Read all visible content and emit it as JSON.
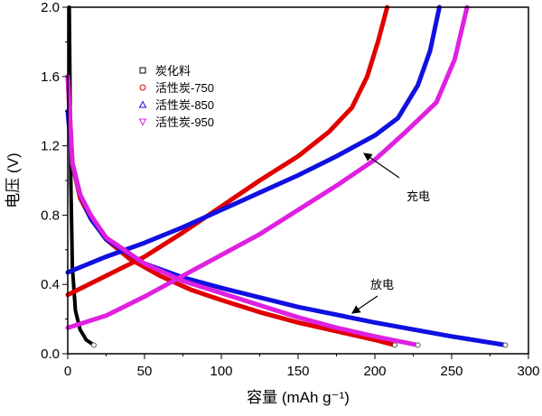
{
  "chart_data": {
    "type": "line",
    "xlabel": "容量 (mAh g⁻¹)",
    "ylabel": "电压 (V)",
    "xlim": [
      0,
      300
    ],
    "ylim": [
      0,
      2.0
    ],
    "xticks": [
      "0",
      "50",
      "100",
      "150",
      "200",
      "250",
      "300"
    ],
    "yticks": [
      "0.0",
      "0.4",
      "0.8",
      "1.2",
      "1.6",
      "2.0"
    ],
    "grid": false,
    "legend_position": "top-left",
    "annotations": [
      {
        "text": "充电"
      },
      {
        "text": "放电"
      }
    ],
    "series": [
      {
        "name": "炭化料",
        "color": "#000000",
        "marker": "square",
        "curves": [
          [
            [
              1,
              2.0
            ],
            [
              1.5,
              1.5
            ],
            [
              2,
              1.0
            ],
            [
              3,
              0.5
            ],
            [
              5,
              0.25
            ],
            [
              8,
              0.14
            ],
            [
              12,
              0.08
            ],
            [
              17,
              0.05
            ]
          ]
        ]
      },
      {
        "name": "活性炭-750",
        "color": "#e00000",
        "marker": "circle",
        "curves": [
          [
            [
              0,
              1.6
            ],
            [
              3,
              1.1
            ],
            [
              8,
              0.9
            ],
            [
              15,
              0.78
            ],
            [
              25,
              0.66
            ],
            [
              40,
              0.55
            ],
            [
              60,
              0.45
            ],
            [
              80,
              0.37
            ],
            [
              100,
              0.31
            ],
            [
              125,
              0.24
            ],
            [
              150,
              0.18
            ],
            [
              175,
              0.13
            ],
            [
              200,
              0.08
            ],
            [
              213,
              0.05
            ]
          ],
          [
            [
              0,
              0.34
            ],
            [
              25,
              0.45
            ],
            [
              50,
              0.56
            ],
            [
              75,
              0.7
            ],
            [
              100,
              0.85
            ],
            [
              125,
              1.0
            ],
            [
              150,
              1.14
            ],
            [
              170,
              1.28
            ],
            [
              185,
              1.42
            ],
            [
              195,
              1.6
            ],
            [
              202,
              1.8
            ],
            [
              208,
              2.0
            ]
          ]
        ]
      },
      {
        "name": "活性炭-850",
        "color": "#1010e0",
        "marker": "triangle-up",
        "curves": [
          [
            [
              0,
              1.4
            ],
            [
              3,
              1.1
            ],
            [
              8,
              0.92
            ],
            [
              15,
              0.78
            ],
            [
              25,
              0.66
            ],
            [
              50,
              0.52
            ],
            [
              75,
              0.44
            ],
            [
              100,
              0.38
            ],
            [
              150,
              0.27
            ],
            [
              200,
              0.18
            ],
            [
              250,
              0.1
            ],
            [
              285,
              0.05
            ]
          ],
          [
            [
              0,
              0.47
            ],
            [
              25,
              0.56
            ],
            [
              50,
              0.64
            ],
            [
              75,
              0.73
            ],
            [
              100,
              0.83
            ],
            [
              125,
              0.93
            ],
            [
              150,
              1.03
            ],
            [
              175,
              1.14
            ],
            [
              200,
              1.26
            ],
            [
              215,
              1.36
            ],
            [
              228,
              1.55
            ],
            [
              236,
              1.75
            ],
            [
              242,
              2.0
            ]
          ]
        ]
      },
      {
        "name": "活性炭-950",
        "color": "#e020e0",
        "marker": "triangle-down",
        "curves": [
          [
            [
              0,
              1.6
            ],
            [
              3,
              1.1
            ],
            [
              8,
              0.92
            ],
            [
              15,
              0.8
            ],
            [
              25,
              0.67
            ],
            [
              50,
              0.52
            ],
            [
              75,
              0.42
            ],
            [
              100,
              0.35
            ],
            [
              125,
              0.28
            ],
            [
              150,
              0.21
            ],
            [
              175,
              0.15
            ],
            [
              200,
              0.1
            ],
            [
              228,
              0.05
            ]
          ],
          [
            [
              0,
              0.15
            ],
            [
              25,
              0.22
            ],
            [
              50,
              0.33
            ],
            [
              75,
              0.45
            ],
            [
              100,
              0.57
            ],
            [
              125,
              0.69
            ],
            [
              150,
              0.83
            ],
            [
              175,
              0.97
            ],
            [
              200,
              1.12
            ],
            [
              220,
              1.28
            ],
            [
              240,
              1.45
            ],
            [
              252,
              1.7
            ],
            [
              260,
              2.0
            ]
          ]
        ]
      }
    ]
  }
}
